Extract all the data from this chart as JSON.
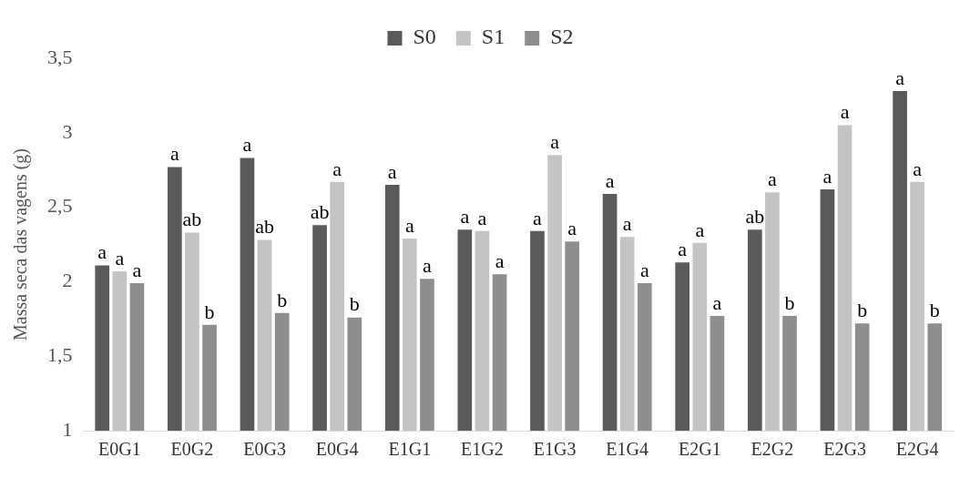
{
  "chart_data": {
    "type": "bar",
    "ylabel": "Massa seca das vagens (g)",
    "categories": [
      "E0G1",
      "E0G2",
      "E0G3",
      "E0G4",
      "E1G1",
      "E1G2",
      "E1G3",
      "E1G4",
      "E2G1",
      "E2G2",
      "E2G3",
      "E2G4"
    ],
    "series": [
      {
        "name": "S0",
        "color": "#5a5a5a",
        "values": [
          2.11,
          2.77,
          2.83,
          2.38,
          2.65,
          2.35,
          2.34,
          2.59,
          2.13,
          2.35,
          2.62,
          3.28
        ],
        "value_labels": [
          "a",
          "a",
          "a",
          "ab",
          "a",
          "a",
          "a",
          "a",
          "a",
          "ab",
          "a",
          "a"
        ]
      },
      {
        "name": "S1",
        "color": "#c4c4c4",
        "values": [
          2.07,
          2.33,
          2.28,
          2.67,
          2.29,
          2.34,
          2.85,
          2.3,
          2.26,
          2.6,
          3.05,
          2.67
        ],
        "value_labels": [
          "a",
          "ab",
          "ab",
          "a",
          "a",
          "a",
          "a",
          "a",
          "a",
          "a",
          "a",
          "a"
        ]
      },
      {
        "name": "S2",
        "color": "#8e8e8e",
        "values": [
          1.99,
          1.71,
          1.79,
          1.76,
          2.02,
          2.05,
          2.27,
          1.99,
          1.77,
          1.77,
          1.72,
          1.72
        ],
        "value_labels": [
          "a",
          "b",
          "b",
          "b",
          "a",
          "a",
          "a",
          "a",
          "a",
          "b",
          "b",
          "b"
        ]
      }
    ],
    "ylim": [
      1,
      3.5
    ],
    "yticks": [
      {
        "value": 1,
        "label": "1"
      },
      {
        "value": 1.5,
        "label": "1,5"
      },
      {
        "value": 2,
        "label": "2"
      },
      {
        "value": 2.5,
        "label": "2,5"
      },
      {
        "value": 3,
        "label": "3"
      },
      {
        "value": 3.5,
        "label": "3,5"
      }
    ],
    "grid": false,
    "legend": "top"
  }
}
